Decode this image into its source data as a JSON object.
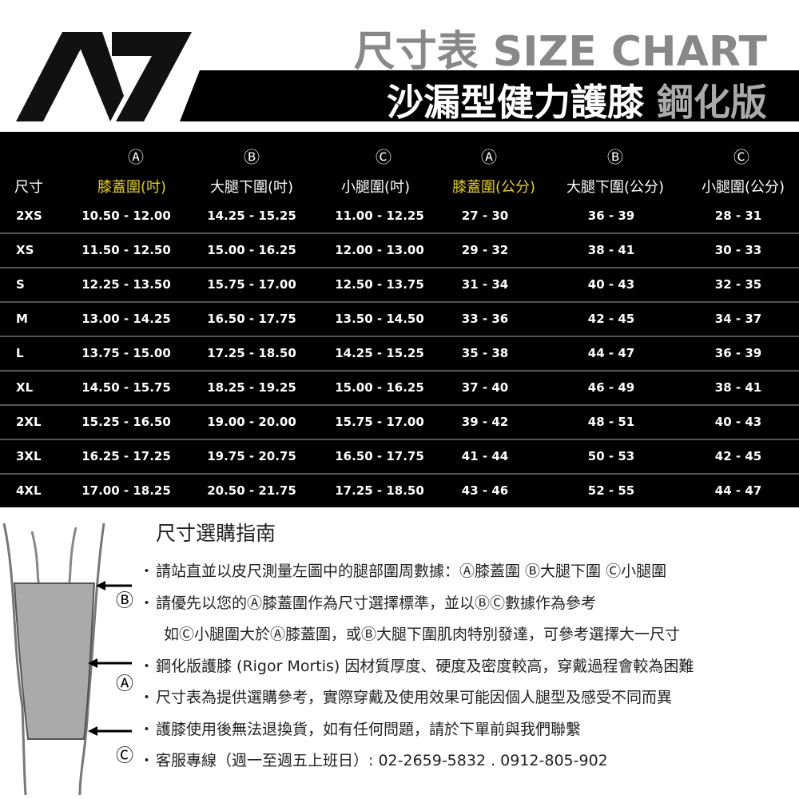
{
  "header": {
    "title_cn": "尺寸表",
    "title_en": "SIZE CHART",
    "subtitle": "沙漏型健力護膝",
    "edition": "鋼化版"
  },
  "table": {
    "markers": [
      "Ⓐ",
      "Ⓑ",
      "Ⓒ",
      "Ⓐ",
      "Ⓑ",
      "Ⓒ"
    ],
    "columns": [
      "尺寸",
      "膝蓋圍(吋)",
      "大腿下圍(吋)",
      "小腿圍(吋)",
      "膝蓋圍(公分)",
      "大腿下圍(公分)",
      "小腿圍(公分)"
    ],
    "rows": [
      [
        "2XS",
        "10.50 - 12.00",
        "14.25 - 15.25",
        "11.00 - 12.25",
        "27 - 30",
        "36 - 39",
        "28 - 31"
      ],
      [
        "XS",
        "11.50 - 12.50",
        "15.00 - 16.25",
        "12.00 - 13.00",
        "29 - 32",
        "38 - 41",
        "30 - 33"
      ],
      [
        "S",
        "12.25 - 13.50",
        "15.75 - 17.00",
        "12.50 - 13.75",
        "31 - 34",
        "40 - 43",
        "32 - 35"
      ],
      [
        "M",
        "13.00 - 14.25",
        "16.50 - 17.75",
        "13.50 - 14.50",
        "33 - 36",
        "42 - 45",
        "34 - 37"
      ],
      [
        "L",
        "13.75 - 15.00",
        "17.25 - 18.50",
        "14.25 - 15.25",
        "35 - 38",
        "44 - 47",
        "36 - 39"
      ],
      [
        "XL",
        "14.50 - 15.75",
        "18.25 - 19.25",
        "15.00 - 16.25",
        "37 - 40",
        "46 - 49",
        "38 - 41"
      ],
      [
        "2XL",
        "15.25 - 16.50",
        "19.00 - 20.00",
        "15.75 - 17.00",
        "39 - 42",
        "48 - 51",
        "40 - 43"
      ],
      [
        "3XL",
        "16.25 - 17.25",
        "19.75 - 20.75",
        "16.50 - 17.75",
        "41 - 44",
        "50 - 53",
        "42 - 45"
      ],
      [
        "4XL",
        "17.00 - 18.25",
        "20.50 - 21.75",
        "17.25 - 18.50",
        "43 - 46",
        "52 - 55",
        "44 - 47"
      ]
    ]
  },
  "guide": {
    "title": "尺寸選購指南",
    "diagram_labels": [
      "Ⓑ",
      "Ⓐ",
      "Ⓒ"
    ],
    "items": [
      [
        "請站直並以皮尺測量左圖中的腿部圍周數據：Ⓐ膝蓋圍 Ⓑ大腿下圍 Ⓒ小腿圍"
      ],
      [
        "請優先以您的Ⓐ膝蓋圍作為尺寸選擇標準，並以ⒷⒸ數據作為參考",
        "如Ⓒ小腿圍大於Ⓐ膝蓋圍，或Ⓑ大腿下圍肌肉特別發達，可參考選擇大一尺寸"
      ],
      [
        "鋼化版護膝 (Rigor Mortis) 因材質厚度、硬度及密度較高，穿戴過程會較為困難"
      ],
      [
        "尺寸表為提供選購參考，實際穿戴及使用效果可能因個人腿型及感受不同而異"
      ],
      [
        "護膝使用後無法退換貨，如有任何問題，請於下單前與我們聯繫"
      ],
      [
        "客服專線（週一至週五上班日）: 02-2659-5832 . 0912-805-902"
      ]
    ]
  }
}
